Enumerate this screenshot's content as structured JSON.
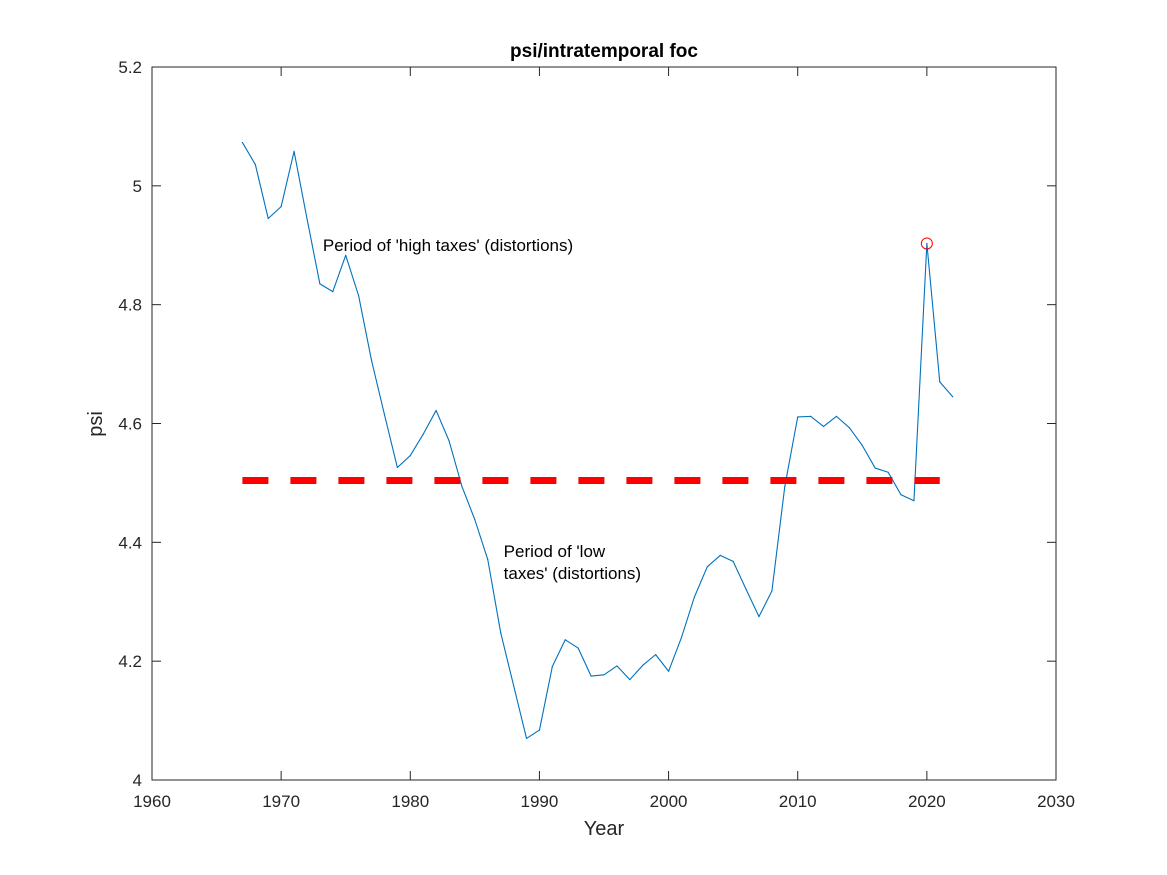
{
  "chart_data": {
    "type": "line",
    "title": "psi/intratemporal foc",
    "xlabel": "Year",
    "ylabel": "psi",
    "xlim": [
      1960,
      2030
    ],
    "ylim": [
      4,
      5.2
    ],
    "xticks": [
      1960,
      1970,
      1980,
      1990,
      2000,
      2010,
      2020,
      2030
    ],
    "xtick_labels": [
      "1960",
      "1970",
      "1980",
      "1990",
      "2000",
      "2010",
      "2020",
      "2030"
    ],
    "yticks": [
      4,
      4.2,
      4.4,
      4.6,
      4.8,
      5,
      5.2
    ],
    "ytick_labels": [
      "4",
      "4.2",
      "4.4",
      "4.6",
      "4.8",
      "5",
      "5.2"
    ],
    "grid": false,
    "series": [
      {
        "color": "#0072BD",
        "x": [
          1967,
          1968,
          1969,
          1970,
          1971,
          1972,
          1973,
          1974,
          1975,
          1976,
          1977,
          1978,
          1979,
          1980,
          1981,
          1982,
          1983,
          1984,
          1985,
          1986,
          1987,
          1988,
          1989,
          1990,
          1991,
          1992,
          1993,
          1994,
          1995,
          1996,
          1997,
          1998,
          1999,
          2000,
          2001,
          2002,
          2003,
          2004,
          2005,
          2006,
          2007,
          2008,
          2009,
          2010,
          2011,
          2012,
          2013,
          2014,
          2015,
          2016,
          2017,
          2018,
          2019,
          2020,
          2021,
          2022
        ],
        "y": [
          5.073,
          5.036,
          4.945,
          4.965,
          5.058,
          4.945,
          4.835,
          4.822,
          4.883,
          4.815,
          4.706,
          4.615,
          4.526,
          4.546,
          4.582,
          4.622,
          4.571,
          4.494,
          4.438,
          4.371,
          4.248,
          4.159,
          4.07,
          4.084,
          4.191,
          4.236,
          4.222,
          4.175,
          4.177,
          4.192,
          4.169,
          4.193,
          4.211,
          4.183,
          4.24,
          4.308,
          4.359,
          4.378,
          4.368,
          4.321,
          4.275,
          4.318,
          4.494,
          4.611,
          4.612,
          4.595,
          4.612,
          4.593,
          4.563,
          4.525,
          4.518,
          4.48,
          4.47,
          4.903,
          4.67,
          4.645
        ]
      },
      {
        "color": "#FF0000",
        "style": "dashed",
        "x": [
          1967,
          2021
        ],
        "y": [
          4.504,
          4.504
        ]
      }
    ],
    "markers": [
      {
        "x": 2020,
        "y": 4.903,
        "shape": "circle",
        "color": "#FF0000"
      }
    ],
    "annotations": [
      {
        "x": 1973,
        "y": 4.89,
        "lines": [
          "Period of 'high taxes' (distortions)"
        ]
      },
      {
        "x": 1987,
        "y": 4.375,
        "lines": [
          "Period of 'low",
          "taxes' (distortions)"
        ]
      }
    ]
  }
}
